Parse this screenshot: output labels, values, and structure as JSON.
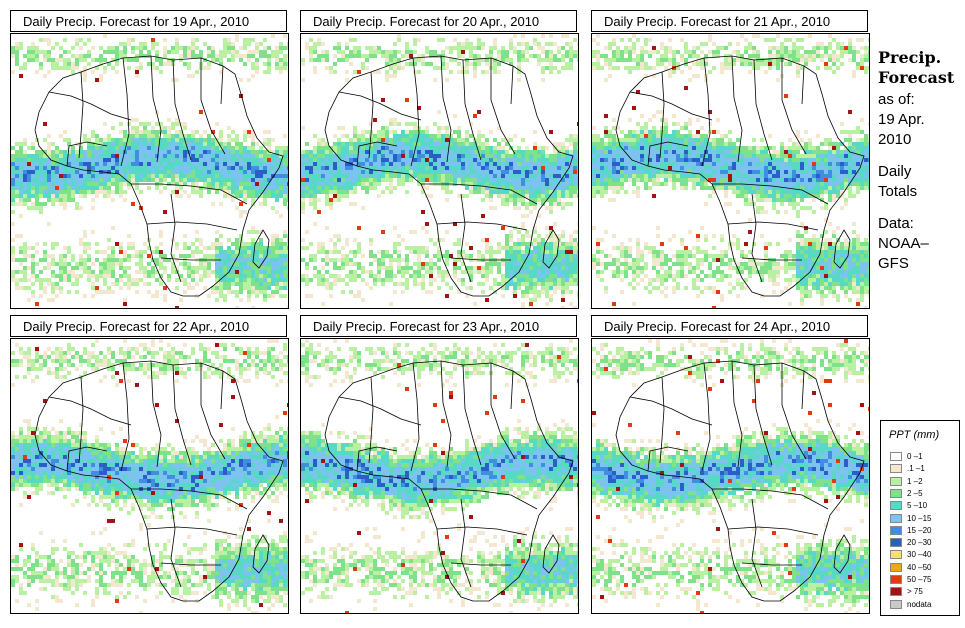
{
  "panels": [
    {
      "title": "Daily Precip. Forecast for  19 Apr., 2010"
    },
    {
      "title": "Daily Precip. Forecast for  20 Apr., 2010"
    },
    {
      "title": "Daily Precip. Forecast for  21 Apr., 2010"
    },
    {
      "title": "Daily Precip. Forecast for  22 Apr., 2010"
    },
    {
      "title": "Daily Precip. Forecast for  23 Apr., 2010"
    },
    {
      "title": "Daily Precip. Forecast for  24 Apr., 2010"
    }
  ],
  "sidebar": {
    "heading1": "Precip.",
    "heading2": "Forecast",
    "line1": "as of:",
    "line2": "19 Apr.",
    "line3": "2010",
    "line4": "Daily",
    "line5": "Totals",
    "line6": "Data:",
    "line7": "NOAA–",
    "line8": "GFS"
  },
  "legend": {
    "title": "PPT (mm)",
    "items": [
      {
        "label": "0 –1",
        "color": "#ffffff"
      },
      {
        "label": ".1 –1",
        "color": "#f3e7cf"
      },
      {
        "label": "1 –2",
        "color": "#b9f0a2"
      },
      {
        "label": "2 –5",
        "color": "#7fe28a"
      },
      {
        "label": "5 –10",
        "color": "#58d9c6"
      },
      {
        "label": "10 –15",
        "color": "#7cc3f0"
      },
      {
        "label": "15 –20",
        "color": "#3f8ee0"
      },
      {
        "label": "20 –30",
        "color": "#2a5fc9"
      },
      {
        "label": "30 –40",
        "color": "#f7e073"
      },
      {
        "label": "40 –50",
        "color": "#f5a21d"
      },
      {
        "label": "50 –75",
        "color": "#e23a10"
      },
      {
        "label": "> 75",
        "color": "#a11414"
      },
      {
        "label": "nodata",
        "color": "#c9c9c9"
      }
    ]
  }
}
